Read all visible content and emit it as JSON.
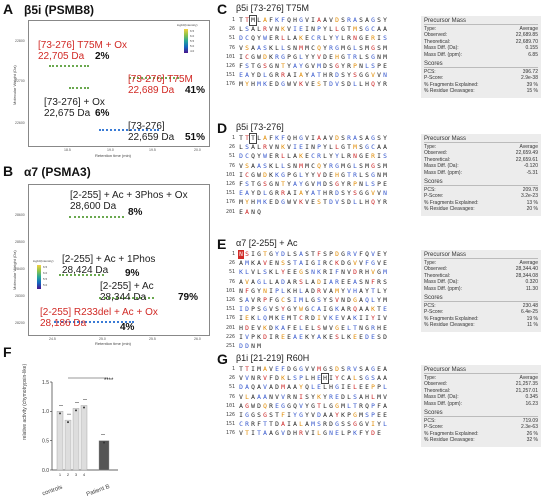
{
  "panelA": {
    "letter": "A",
    "title": "β5i (PSMB8)",
    "ylabel": "Molecular Weight (Da)",
    "xlabel": "Retention time (min)",
    "colorbar_title": "log10(Intensity)",
    "colorbar_ticks": [
      "6.5",
      "6.0",
      "5.5",
      "5.0",
      "4.5",
      "4.0"
    ],
    "yticks": [
      "22800",
      "22700",
      "22600"
    ],
    "xticks": [
      "18.0",
      "18.5",
      "19.0",
      "19.5",
      "20.0"
    ],
    "annotations": [
      {
        "label": "[73-276] T75M + Ox",
        "mass": "22,705 Da",
        "pct": "2%",
        "color": "red"
      },
      {
        "label": "[73-276] T75M",
        "mass": "22,689 Da",
        "pct": "41%",
        "color": "red"
      },
      {
        "label": "[73-276] + Ox",
        "mass": "22,675 Da",
        "pct": "6%",
        "color": "black"
      },
      {
        "label": "[73-276]",
        "mass": "22,659 Da",
        "pct": "51%",
        "color": "black"
      }
    ]
  },
  "panelB": {
    "letter": "B",
    "title": "α7 (PSMA3)",
    "ylabel": "Molecular Weight (Da)",
    "xlabel": "Retention time (min)",
    "colorbar_title": "log10(Intensity)",
    "colorbar_ticks": [
      "6.5",
      "6.0",
      "5.5",
      "5.0",
      "4.5"
    ],
    "yticks": [
      "28600",
      "28500",
      "28400",
      "28300",
      "28200"
    ],
    "xticks": [
      "24.5",
      "25.0",
      "25.5",
      "26.0"
    ],
    "annotations": [
      {
        "label": "[2-255] + Ac + 3Phos + Ox",
        "mass": "28,600 Da",
        "pct": "8%",
        "color": "black"
      },
      {
        "label": "[2-255] + Ac + 1Phos",
        "mass": "28,424 Da",
        "pct": "9%",
        "color": "black"
      },
      {
        "label": "[2-255] + Ac",
        "mass": "28,344 Da",
        "pct": "79%",
        "color": "black"
      },
      {
        "label": "[2-255] R233del + Ac + Ox",
        "mass": "28,186 Da",
        "pct": "4%",
        "color": "red"
      }
    ]
  },
  "panelF": {
    "letter": "F",
    "ylabel": "relative activity (chymotrypsin-like)",
    "yticks": [
      "1.5",
      "1.0",
      "0.5",
      "0.0"
    ],
    "sig": "****",
    "group_labels": [
      "controls",
      "Patient B"
    ],
    "bar_ticks": [
      "1",
      "2",
      "3",
      "4"
    ],
    "chart_data": {
      "type": "bar",
      "categories": [
        "1",
        "2",
        "3",
        "4",
        "Patient B"
      ],
      "values": [
        1.0,
        0.85,
        1.05,
        1.1,
        0.5
      ],
      "ylim": [
        0,
        1.5
      ]
    }
  },
  "panelC": {
    "letter": "C",
    "title": "β5i [73-276] T75M",
    "rownums": [
      "1",
      "26",
      "51",
      "76",
      "101",
      "126",
      "151",
      "176"
    ],
    "rows": [
      "TTMLAFKFQHGVIAAVDSRASAGSY",
      "LSALRVNKVIEINPYLLGTMSGCAA",
      "DCQYWERLLAKECRLYYLRNGERIS",
      "VSAASKLLSNMMCQYRGMGLSMGSM",
      "ICGWDKRGPGLYYVDEHGTRLSGNM",
      "FSTGSGNTYAYGVMDSGYRPNLSPE",
      "EAYDLGRRAIAYATHRDSYSGGVVN",
      "MYHMKEDGWVKVESTDVSDLLHQYR"
    ],
    "stats": {
      "header": "Precursor Mass",
      "type_label": "Type:",
      "type_value": "Average",
      "observed_label": "Observed:",
      "observed_value": "22,689.85",
      "theoretical_label": "Theoretical:",
      "theoretical_value": "22,689.70",
      "diffda_label": "Mass Diff. (Da):",
      "diffda_value": "0.155",
      "diffppm_label": "Mass Diff. (ppm):",
      "diffppm_value": "6.85",
      "scores_header": "Scores",
      "pcs_label": "PCS:",
      "pcs_value": "396.72",
      "pscore_label": "P-Score:",
      "pscore_value": "2.9e-38",
      "frag_label": "% Fragments Explained:",
      "frag_value": "39 %",
      "resid_label": "% Residue Cleavages:",
      "resid_value": "15 %"
    }
  },
  "panelD": {
    "letter": "D",
    "title": "β5i [73-276]",
    "rownums": [
      "1",
      "26",
      "51",
      "76",
      "101",
      "126",
      "151",
      "176",
      "201"
    ],
    "rows": [
      "TTTLAFKFQHGVIAAVDSRASAGSY",
      "LSALRVNKVIEINPYLLGTMSGCAA",
      "DCQYWERLLAKECRLYYLRNGERIS",
      "VSAASKLLSNMMCQYRGMGLSMGSM",
      "ICGWDKKGPGLYYVDEHGTRLSGNM",
      "FSTGSGNTYAYGVMDSGYRPNLSPE",
      "EAYDLGRRAIAYATHRDSYSGGVVN",
      "MYHMKEDGWVKVESTDVSDLLHQYR",
      "EANQ"
    ],
    "stats": {
      "header": "Precursor Mass",
      "type_label": "Type:",
      "type_value": "Average",
      "observed_label": "Observed:",
      "observed_value": "22,659.49",
      "theoretical_label": "Theoretical:",
      "theoretical_value": "22,659.61",
      "diffda_label": "Mass Diff. (Da):",
      "diffda_value": "-0.120",
      "diffppm_label": "Mass Diff. (ppm):",
      "diffppm_value": "-5.31",
      "scores_header": "Scores",
      "pcs_label": "PCS:",
      "pcs_value": "209.78",
      "pscore_label": "P-Score:",
      "pscore_value": "3.2e-23",
      "frag_label": "% Fragments Explained:",
      "frag_value": "13 %",
      "resid_label": "% Residue Cleavages:",
      "resid_value": "20 %"
    }
  },
  "panelE": {
    "letter": "E",
    "title": "α7 [2-255] + Ac",
    "rownums": [
      "1",
      "26",
      "51",
      "76",
      "101",
      "126",
      "151",
      "176",
      "201",
      "226",
      "251"
    ],
    "rows": [
      "NSIGTGYDLSASTFSPDGRVFQVEY",
      "AMKAVENSSTAIGIRCKDGVVFGVE",
      "KLVLSKLYEEGSNKRIFNVDRHVGM",
      "AVAGLLADARSLADIAREEASNFRS",
      "NFGYNIPLKHLADRVAMYVHAYTLY",
      "SAVRPFGCSIMLGSYSVNDGAQLYM",
      "IDPSGVSYGYWGCAIGKARQAAKTE",
      "IEKLQMKEMTCRDIVKEVAKIIYIV",
      "HDEVKDKAFELELSWVGELTNGRHE",
      "IVPKDIREEAEKYAKESLKEEDESD",
      "DDNM"
    ],
    "stats": {
      "header": "Precursor Mass",
      "type_label": "Type:",
      "type_value": "Average",
      "observed_label": "Observed:",
      "observed_value": "28,344.40",
      "theoretical_label": "Theoretical:",
      "theoretical_value": "28,344.08",
      "diffda_label": "Mass Diff. (Da):",
      "diffda_value": "0.320",
      "diffppm_label": "Mass Diff. (ppm):",
      "diffppm_value": "11.30",
      "scores_header": "Scores",
      "pcs_label": "PCS:",
      "pcs_value": "230.48",
      "pscore_label": "P-Score:",
      "pscore_value": "6.4e-25",
      "frag_label": "% Fragments Explained:",
      "frag_value": "19 %",
      "resid_label": "% Residue Cleavages:",
      "resid_value": "11 %"
    }
  },
  "panelG": {
    "letter": "G",
    "title": "β1i [21-219] R60H",
    "rownums": [
      "1",
      "26",
      "51",
      "76",
      "101",
      "126",
      "151",
      "176"
    ],
    "rows": [
      "TTIMAVEFDGGVVMGSDSRVSAGEA",
      "VVNRVFDKLSPLHEHIYCALSGSAA",
      "DAQAVADMAAYQLELHGIELEEPPL",
      "VLAAANVVRNISYKYREDLSAHLMV",
      "AGWDQREGGQVYGTLGGMLTRQPFA",
      "IGGSGSTFIYGYVDAAYKPGMSPEE",
      "CRRFTTDAIALAMSRDGSSGGVIYL",
      "VTITAAGVDHRVILGNELPKFYDE"
    ],
    "stats": {
      "header": "Precursor Mass",
      "type_label": "Type:",
      "type_value": "Average",
      "observed_label": "Observed:",
      "observed_value": "21,257.35",
      "theoretical_label": "Theoretical:",
      "theoretical_value": "21,257.01",
      "diffda_label": "Mass Diff. (Da):",
      "diffda_value": "0.345",
      "diffppm_label": "Mass Diff. (ppm):",
      "diffppm_value": "16.23",
      "scores_header": "Scores",
      "pcs_label": "PCS:",
      "pcs_value": "719.09",
      "pscore_label": "P-Score:",
      "pscore_value": "2.3e-63",
      "frag_label": "% Fragments Explained:",
      "frag_value": "26 %",
      "resid_label": "% Residue Cleavages:",
      "resid_value": "32 %"
    }
  }
}
